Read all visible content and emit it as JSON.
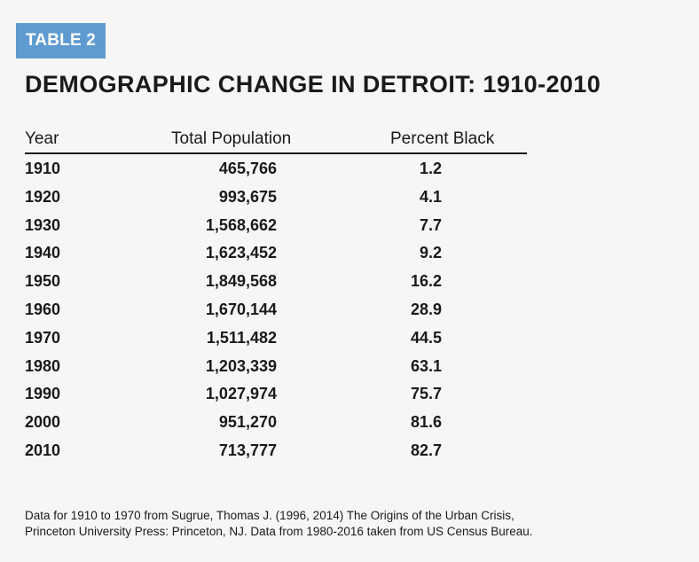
{
  "badge": "TABLE 2",
  "title": "DEMOGRAPHIC CHANGE IN DETROIT: 1910-2010",
  "table": {
    "headers": {
      "year": "Year",
      "population": "Total Population",
      "percent": "Percent Black"
    },
    "rows": [
      {
        "year": "1910",
        "population": "465,766",
        "percent": "1.2"
      },
      {
        "year": "1920",
        "population": "993,675",
        "percent": "4.1"
      },
      {
        "year": "1930",
        "population": "1,568,662",
        "percent": "7.7"
      },
      {
        "year": "1940",
        "population": "1,623,452",
        "percent": "9.2"
      },
      {
        "year": "1950",
        "population": "1,849,568",
        "percent": "16.2"
      },
      {
        "year": "1960",
        "population": "1,670,144",
        "percent": "28.9"
      },
      {
        "year": "1970",
        "population": "1,511,482",
        "percent": "44.5"
      },
      {
        "year": "1980",
        "population": "1,203,339",
        "percent": "63.1"
      },
      {
        "year": "1990",
        "population": "1,027,974",
        "percent": "75.7"
      },
      {
        "year": "2000",
        "population": "951,270",
        "percent": "81.6"
      },
      {
        "year": "2010",
        "population": "713,777",
        "percent": "82.7"
      }
    ]
  },
  "note": {
    "line1": "Data for 1910 to 1970 from Sugrue, Thomas J. (1996, 2014) The Origins of the Urban Crisis,",
    "line2": "Princeton University Press: Princeton, NJ. Data from 1980-2016 taken from US Census Bureau."
  },
  "colors": {
    "badge": "#5f9bd0",
    "background": "#f6f6f7",
    "text": "#1a1a1a"
  }
}
